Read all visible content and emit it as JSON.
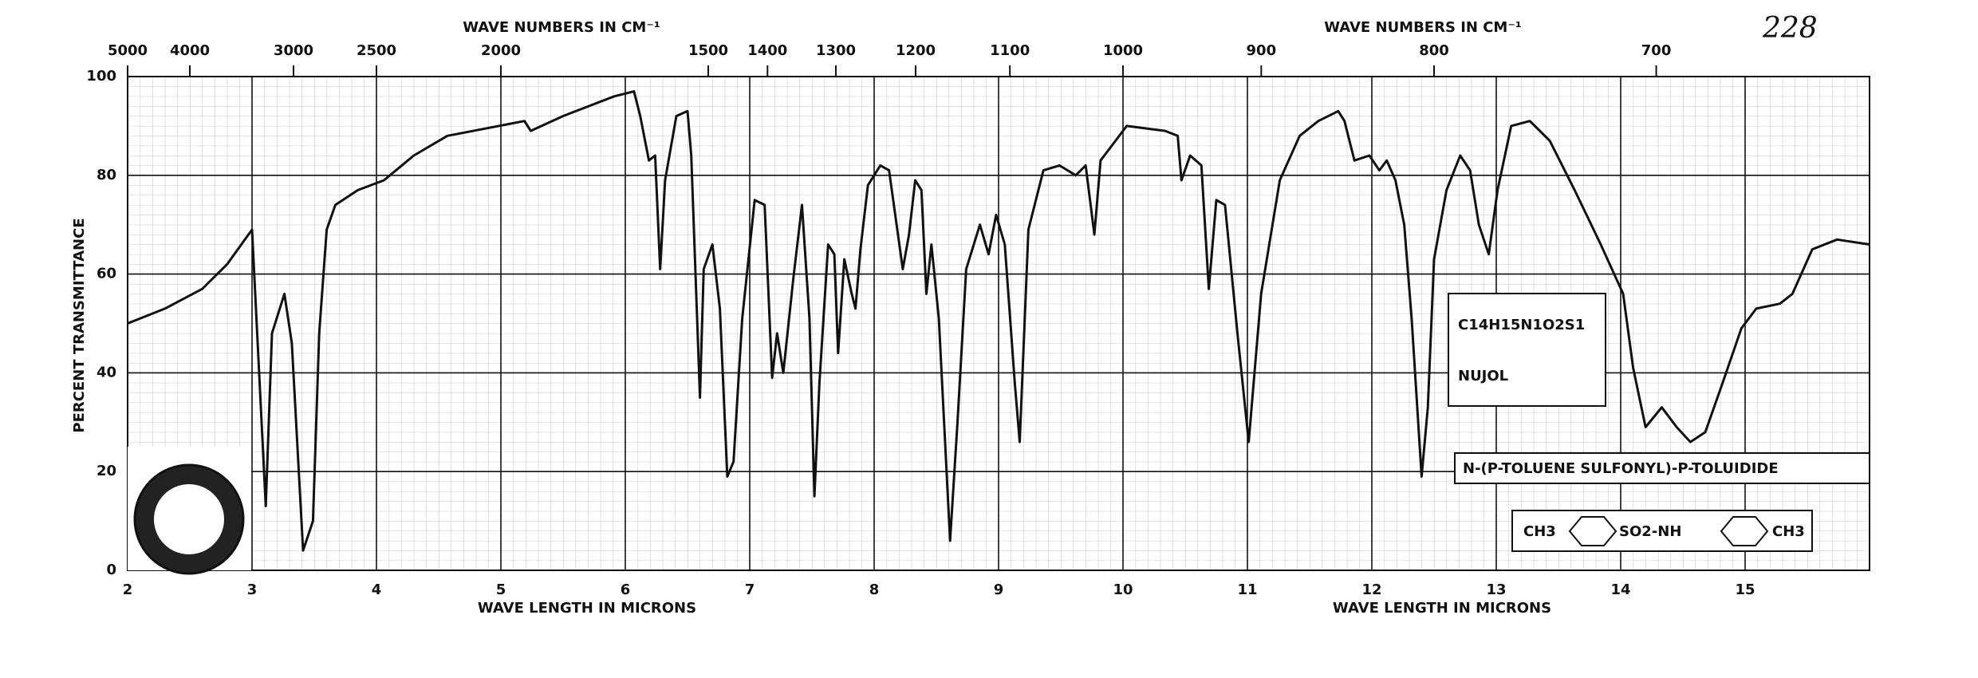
{
  "chart_data": {
    "type": "line",
    "x_label": "WAVE LENGTH IN MICRONS",
    "x2_label": "WAVE NUMBERS IN CM⁻¹",
    "y_label": "PERCENT TRANSMITTANCE",
    "annotations": [
      "228",
      "C14H15N1O2S1",
      "NUJOL",
      "N-(P-TOLUENE SULFONYL)-P-TOLUIDIDE",
      "CH3",
      "SO2-NH",
      "CH3"
    ],
    "xlim": [
      2,
      16
    ],
    "ylim": [
      0,
      100
    ],
    "xticks": [
      2,
      3,
      4,
      5,
      6,
      7,
      8,
      9,
      10,
      11,
      12,
      13,
      14,
      15
    ],
    "yticks": [
      0,
      20,
      40,
      60,
      80,
      100
    ],
    "x2ticks": [
      5000,
      4000,
      3000,
      2500,
      2000,
      1500,
      1400,
      1300,
      1200,
      1100,
      1000,
      900,
      800,
      700
    ],
    "grid": true,
    "color": "#111111",
    "x": [
      2.0,
      2.3,
      2.6,
      2.8,
      3.0,
      3.11,
      3.16,
      3.26,
      3.32,
      3.41,
      3.49,
      3.54,
      3.6,
      3.67,
      3.85,
      4.06,
      4.3,
      4.57,
      5.19,
      5.24,
      5.5,
      5.91,
      6.07,
      6.12,
      6.19,
      6.24,
      6.28,
      6.32,
      6.41,
      6.5,
      6.53,
      6.6,
      6.63,
      6.7,
      6.76,
      6.82,
      6.87,
      6.94,
      7.04,
      7.12,
      7.18,
      7.22,
      7.27,
      7.35,
      7.42,
      7.48,
      7.52,
      7.56,
      7.63,
      7.68,
      7.71,
      7.76,
      7.82,
      7.85,
      7.89,
      7.95,
      8.05,
      8.12,
      8.23,
      8.28,
      8.33,
      8.38,
      8.42,
      8.46,
      8.52,
      8.61,
      8.67,
      8.74,
      8.85,
      8.92,
      8.98,
      9.05,
      9.13,
      9.17,
      9.24,
      9.36,
      9.49,
      9.62,
      9.7,
      9.77,
      9.82,
      10.03,
      10.34,
      10.44,
      10.47,
      10.54,
      10.63,
      10.69,
      10.75,
      10.82,
      10.92,
      11.01,
      11.11,
      11.26,
      11.42,
      11.57,
      11.73,
      11.78,
      11.86,
      11.98,
      12.06,
      12.12,
      12.19,
      12.26,
      12.32,
      12.4,
      12.45,
      12.5,
      12.6,
      12.71,
      12.79,
      12.86,
      12.94,
      13.01,
      13.12,
      13.27,
      13.43,
      13.63,
      13.84,
      14.02,
      14.1,
      14.2,
      14.33,
      14.45,
      14.56,
      14.68,
      14.82,
      14.97,
      15.09,
      15.28,
      15.38,
      15.54,
      15.74,
      16.0
    ],
    "values": [
      50,
      53,
      57,
      62,
      69,
      13,
      48,
      56,
      46,
      4,
      10,
      48,
      69,
      74,
      77,
      79,
      84,
      88,
      91,
      89,
      92,
      96,
      97,
      92,
      83,
      84,
      61,
      79,
      92,
      93,
      84,
      35,
      61,
      66,
      53,
      19,
      22,
      51,
      75,
      74,
      39,
      48,
      40,
      59,
      74,
      51,
      15,
      38,
      66,
      64,
      44,
      63,
      56,
      53,
      65,
      78,
      82,
      81,
      61,
      68,
      79,
      77,
      56,
      66,
      51,
      6,
      30,
      61,
      70,
      64,
      72,
      66,
      38,
      26,
      69,
      81,
      82,
      80,
      82,
      68,
      83,
      90,
      89,
      88,
      79,
      84,
      82,
      57,
      75,
      74,
      48,
      26,
      56,
      79,
      88,
      91,
      93,
      91,
      83,
      84,
      81,
      83,
      79,
      70,
      51,
      19,
      33,
      63,
      77,
      84,
      81,
      70,
      64,
      77,
      90,
      91,
      87,
      77,
      66,
      56,
      41,
      29,
      33,
      29,
      26,
      28,
      38,
      49,
      53,
      54,
      56,
      65,
      67,
      66
    ]
  }
}
